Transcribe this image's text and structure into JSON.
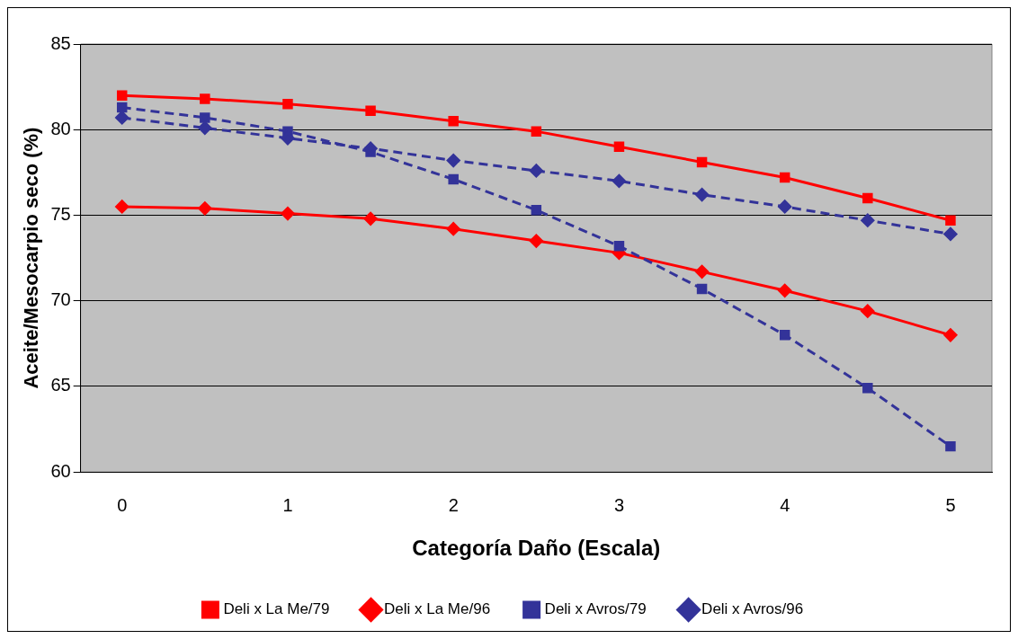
{
  "chart_data": {
    "type": "line",
    "xlabel": "Categoría Daño (Escala)",
    "ylabel": "Aceite/Mesocarpio seco (%)",
    "categories": [
      "0",
      null,
      "1",
      null,
      "2",
      null,
      "3",
      null,
      "4",
      null,
      "5"
    ],
    "ylim": [
      60,
      85
    ],
    "yticks": [
      60,
      65,
      70,
      75,
      80,
      85
    ],
    "grid": "y",
    "legend": "bottom",
    "series": [
      {
        "name": "Deli x La Me/79",
        "color": "#ff0000",
        "marker": "square",
        "line_style": "solid",
        "values": [
          82.0,
          81.8,
          81.5,
          81.1,
          80.5,
          79.9,
          79.0,
          78.1,
          77.2,
          76.0,
          74.7
        ]
      },
      {
        "name": "Deli x La Me/96",
        "color": "#ff0000",
        "marker": "diamond",
        "line_style": "solid",
        "values": [
          75.5,
          75.4,
          75.1,
          74.8,
          74.2,
          73.5,
          72.8,
          71.7,
          70.6,
          69.4,
          68.0
        ]
      },
      {
        "name": "Deli x Avros/79",
        "color": "#333399",
        "marker": "square",
        "line_style": "dashed",
        "values": [
          81.3,
          80.7,
          79.9,
          78.7,
          77.1,
          75.3,
          73.2,
          70.7,
          68.0,
          64.9,
          61.5
        ]
      },
      {
        "name": "Deli x Avros/96",
        "color": "#333399",
        "marker": "diamond",
        "line_style": "dashed",
        "values": [
          80.7,
          80.1,
          79.5,
          78.9,
          78.2,
          77.6,
          77.0,
          76.2,
          75.5,
          74.7,
          73.9
        ]
      }
    ]
  }
}
